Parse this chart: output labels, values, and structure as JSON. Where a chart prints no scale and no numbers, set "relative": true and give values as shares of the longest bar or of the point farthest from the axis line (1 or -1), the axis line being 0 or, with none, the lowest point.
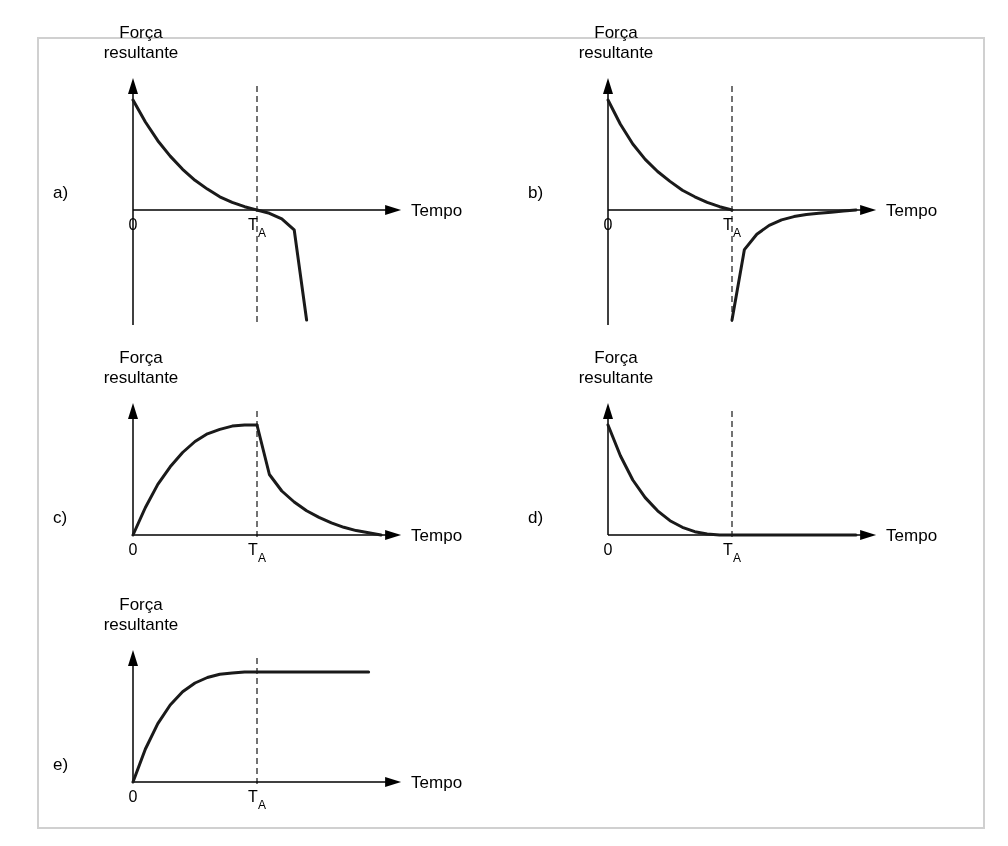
{
  "chart_data": [
    {
      "type": "line",
      "title": "a)",
      "xlabel": "Tempo",
      "ylabel": "Força resultante",
      "relative": true,
      "categories": [
        "0",
        null,
        null,
        null,
        null,
        null,
        null,
        null,
        null,
        null,
        "T$_{A}$",
        null,
        null,
        null,
        null,
        null,
        null,
        null,
        null,
        null,
        null,
        null
      ],
      "ref_lines": [
        {
          "axis": "x",
          "value": "T$_{A}$",
          "color": "#444444",
          "line_style": "dashed"
        }
      ],
      "series": [
        {
          "color": "#1a1a1a",
          "values": [
            1,
            0.8,
            0.63,
            0.49,
            0.37,
            0.27,
            0.19,
            0.12,
            0.07,
            0.03,
            0,
            -0.03,
            -0.08,
            -0.18,
            -1,
            null,
            null,
            null,
            null,
            null,
            null,
            null
          ]
        }
      ]
    },
    {
      "type": "line",
      "title": "b)",
      "xlabel": "Tempo",
      "ylabel": "Força resultante",
      "relative": true,
      "categories": [
        "0",
        null,
        null,
        null,
        null,
        null,
        null,
        null,
        null,
        null,
        "T$_{A}$",
        null,
        null,
        null,
        null,
        null,
        null,
        null,
        null,
        null,
        null,
        null
      ],
      "ref_lines": [
        {
          "axis": "x",
          "value": "T$_{A}$",
          "color": "#444444",
          "line_style": "dashed"
        }
      ],
      "series": [
        {
          "color": "#1a1a1a",
          "values": [
            1,
            0.78,
            0.6,
            0.46,
            0.35,
            0.26,
            0.18,
            0.12,
            0.07,
            0.03,
            0,
            null,
            null,
            null,
            null,
            null,
            null,
            null,
            null,
            null,
            null,
            null
          ]
        },
        {
          "color": "#1a1a1a",
          "values": [
            null,
            null,
            null,
            null,
            null,
            null,
            null,
            null,
            null,
            null,
            -1,
            -0.36,
            -0.22,
            -0.14,
            -0.09,
            -0.06,
            -0.04,
            -0.03,
            -0.02,
            -0.01,
            0,
            null
          ]
        }
      ]
    },
    {
      "type": "line",
      "title": "c)",
      "xlabel": "Tempo",
      "ylabel": "Força resultante",
      "relative": true,
      "categories": [
        "0",
        null,
        null,
        null,
        null,
        null,
        null,
        null,
        null,
        null,
        "T$_{A}$",
        null,
        null,
        null,
        null,
        null,
        null,
        null,
        null,
        null,
        null,
        null
      ],
      "ref_lines": [
        {
          "axis": "x",
          "value": "T$_{A}$",
          "color": "#444444",
          "line_style": "dashed"
        }
      ],
      "series": [
        {
          "color": "#1a1a1a",
          "values": [
            0,
            0.25,
            0.46,
            0.62,
            0.75,
            0.85,
            0.92,
            0.96,
            0.99,
            1,
            1,
            null,
            null,
            null,
            null,
            null,
            null,
            null,
            null,
            null,
            null,
            null
          ]
        },
        {
          "color": "#1a1a1a",
          "values": [
            null,
            null,
            null,
            null,
            null,
            null,
            null,
            null,
            null,
            null,
            1,
            0.55,
            0.4,
            0.3,
            0.22,
            0.16,
            0.11,
            0.07,
            0.04,
            0.02,
            0,
            null
          ]
        }
      ]
    },
    {
      "type": "line",
      "title": "d)",
      "xlabel": "Tempo",
      "ylabel": "Força resultante",
      "relative": true,
      "categories": [
        "0",
        null,
        null,
        null,
        null,
        null,
        null,
        null,
        null,
        null,
        "T$_{A}$",
        null,
        null,
        null,
        null,
        null,
        null,
        null,
        null,
        null,
        null,
        null
      ],
      "ref_lines": [
        {
          "axis": "x",
          "value": "T$_{A}$",
          "color": "#444444",
          "line_style": "dashed"
        }
      ],
      "series": [
        {
          "color": "#1a1a1a",
          "values": [
            1,
            0.72,
            0.5,
            0.34,
            0.22,
            0.13,
            0.07,
            0.03,
            0.01,
            0,
            0,
            0,
            0,
            0,
            0,
            0,
            0,
            0,
            0,
            0,
            0,
            null
          ]
        }
      ]
    },
    {
      "type": "line",
      "title": "e)",
      "xlabel": "Tempo",
      "ylabel": "Força resultante",
      "relative": true,
      "categories": [
        "0",
        null,
        null,
        null,
        null,
        null,
        null,
        null,
        null,
        null,
        "T$_{A}$",
        null,
        null,
        null,
        null,
        null,
        null,
        null,
        null,
        null,
        null,
        null
      ],
      "ref_lines": [
        {
          "axis": "x",
          "value": "T$_{A}$",
          "color": "#444444",
          "line_style": "dashed"
        }
      ],
      "series": [
        {
          "color": "#1a1a1a",
          "values": [
            0,
            0.3,
            0.53,
            0.7,
            0.82,
            0.9,
            0.95,
            0.98,
            0.99,
            1,
            1,
            1,
            1,
            1,
            1,
            1,
            1,
            1,
            1,
            1,
            null,
            null
          ]
        }
      ]
    }
  ]
}
